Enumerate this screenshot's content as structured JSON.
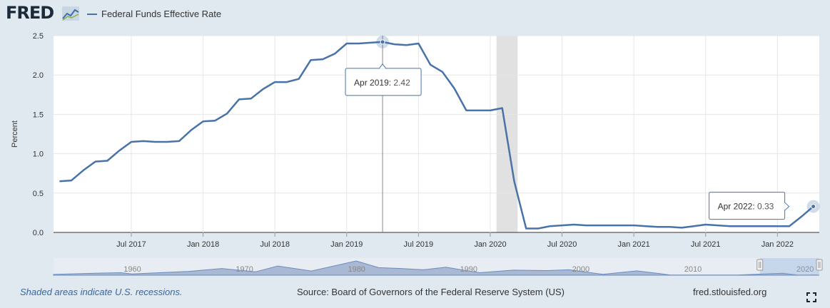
{
  "brand": {
    "logo_text": "FRED"
  },
  "legend": {
    "label": "Federal Funds Effective Rate"
  },
  "colors": {
    "series": "#4872a8",
    "recession": "#e1e1e1",
    "background": "#e1e9f0",
    "grid": "#e6e6e6",
    "navigator_fill": "#a9b9d4"
  },
  "chart_data": {
    "type": "line",
    "ylabel": "Percent",
    "ylim": [
      0,
      2.5
    ],
    "yticks": [
      "0.0",
      "0.5",
      "1.0",
      "1.5",
      "2.0",
      "2.5"
    ],
    "x_start": "2017-01",
    "x_end": "2022-04",
    "xticks": [
      {
        "label": "Jul 2017",
        "date": "2017-07"
      },
      {
        "label": "Jan 2018",
        "date": "2018-01"
      },
      {
        "label": "Jul 2018",
        "date": "2018-07"
      },
      {
        "label": "Jan 2019",
        "date": "2019-01"
      },
      {
        "label": "Jul 2019",
        "date": "2019-07"
      },
      {
        "label": "Jan 2020",
        "date": "2020-01"
      },
      {
        "label": "Jul 2020",
        "date": "2020-07"
      },
      {
        "label": "Jan 2021",
        "date": "2021-01"
      },
      {
        "label": "Jul 2021",
        "date": "2021-07"
      },
      {
        "label": "Jan 2022",
        "date": "2022-01"
      }
    ],
    "grid": true,
    "recession": {
      "start": "2020-02",
      "end": "2020-04"
    },
    "series": [
      {
        "name": "Federal Funds Effective Rate",
        "x": [
          "2017-01",
          "2017-02",
          "2017-03",
          "2017-04",
          "2017-05",
          "2017-06",
          "2017-07",
          "2017-08",
          "2017-09",
          "2017-10",
          "2017-11",
          "2017-12",
          "2018-01",
          "2018-02",
          "2018-03",
          "2018-04",
          "2018-05",
          "2018-06",
          "2018-07",
          "2018-08",
          "2018-09",
          "2018-10",
          "2018-11",
          "2018-12",
          "2019-01",
          "2019-02",
          "2019-03",
          "2019-04",
          "2019-05",
          "2019-06",
          "2019-07",
          "2019-08",
          "2019-09",
          "2019-10",
          "2019-11",
          "2019-12",
          "2020-01",
          "2020-02",
          "2020-03",
          "2020-04",
          "2020-05",
          "2020-06",
          "2020-07",
          "2020-08",
          "2020-09",
          "2020-10",
          "2020-11",
          "2020-12",
          "2021-01",
          "2021-02",
          "2021-03",
          "2021-04",
          "2021-05",
          "2021-06",
          "2021-07",
          "2021-08",
          "2021-09",
          "2021-10",
          "2021-11",
          "2021-12",
          "2022-01",
          "2022-02",
          "2022-03",
          "2022-04"
        ],
        "values": [
          0.65,
          0.66,
          0.79,
          0.9,
          0.91,
          1.04,
          1.15,
          1.16,
          1.15,
          1.15,
          1.16,
          1.3,
          1.41,
          1.42,
          1.51,
          1.69,
          1.7,
          1.82,
          1.91,
          1.91,
          1.95,
          2.19,
          2.2,
          2.27,
          2.4,
          2.4,
          2.41,
          2.42,
          2.39,
          2.38,
          2.4,
          2.13,
          2.04,
          1.83,
          1.55,
          1.55,
          1.55,
          1.58,
          0.65,
          0.05,
          0.05,
          0.08,
          0.09,
          0.1,
          0.09,
          0.09,
          0.09,
          0.09,
          0.09,
          0.08,
          0.07,
          0.07,
          0.06,
          0.08,
          0.1,
          0.09,
          0.08,
          0.08,
          0.08,
          0.08,
          0.08,
          0.08,
          0.2,
          0.33
        ]
      }
    ],
    "tooltips": [
      {
        "date": "2019-04",
        "label": "Apr 2019:",
        "value": "2.42"
      },
      {
        "date": "2022-04",
        "label": "Apr 2022:",
        "value": "0.33"
      }
    ]
  },
  "navigator": {
    "labels": [
      "1960",
      "1970",
      "1980",
      "1990",
      "2000",
      "2010",
      "2020"
    ],
    "label_years": [
      1960,
      1970,
      1980,
      1990,
      2000,
      2010,
      2020
    ],
    "year_start": 1954,
    "year_end": 2022.3,
    "selection_start": 2017.0,
    "selection_end": 2022.3
  },
  "footer": {
    "note": "Shaded areas indicate U.S. recessions.",
    "source": "Source: Board of Governors of the Federal Reserve System (US)",
    "url": "fred.stlouisfed.org"
  }
}
